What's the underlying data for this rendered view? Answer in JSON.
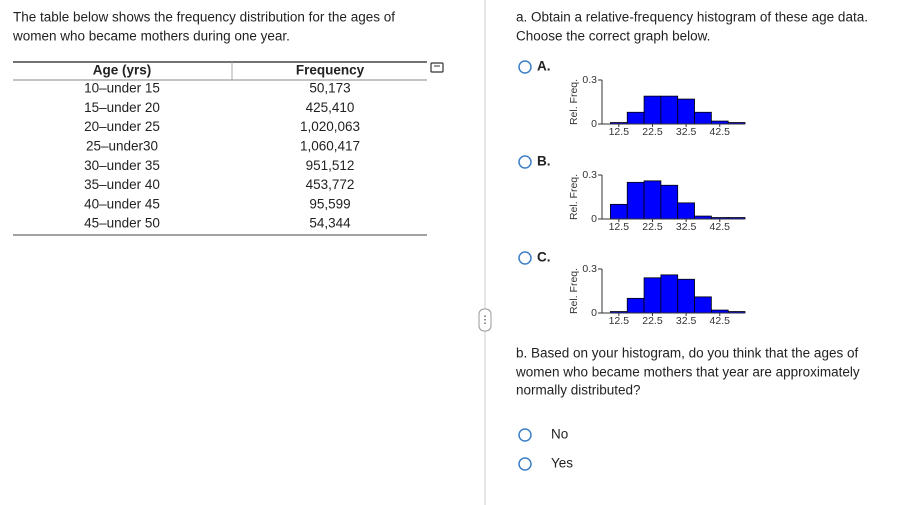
{
  "intro": [
    "The table below shows the frequency distribution for the ages of",
    "women who became mothers during one year."
  ],
  "table": {
    "headers": [
      "Age (yrs)",
      "Frequency"
    ],
    "rows": [
      [
        "10–under 15",
        "50,173"
      ],
      [
        "15–under 20",
        "425,410"
      ],
      [
        "20–under 25",
        "1,020,063"
      ],
      [
        "25–under30",
        "1,060,417"
      ],
      [
        "30–under 35",
        "951,512"
      ],
      [
        "35–under 40",
        "453,772"
      ],
      [
        "40–under 45",
        "95,599"
      ],
      [
        "45–under 50",
        "54,344"
      ]
    ]
  },
  "question_a": {
    "prompt": [
      "a. Obtain a relative-frequency histogram of these age data.",
      "Choose the correct graph below."
    ],
    "options": [
      {
        "label": "A.",
        "chart_data": {
          "type": "histogram",
          "y_label": "Rel. Freq.",
          "color": "#0000ff",
          "bins": [
            10,
            15,
            20,
            25,
            30,
            35,
            40,
            45,
            50
          ],
          "values": [
            0.01,
            0.08,
            0.19,
            0.19,
            0.17,
            0.08,
            0.02,
            0.01
          ],
          "xlim": [
            7.5,
            50
          ],
          "xticks": [
            12.5,
            22.5,
            32.5,
            42.5
          ],
          "ylim": [
            0,
            0.3
          ],
          "yticks": [
            0,
            0.3
          ]
        }
      },
      {
        "label": "B.",
        "chart_data": {
          "type": "histogram",
          "y_label": "Rel. Freq.",
          "color": "#0000ff",
          "bins": [
            10,
            15,
            20,
            25,
            30,
            35,
            40,
            45,
            50
          ],
          "values": [
            0.1,
            0.25,
            0.26,
            0.23,
            0.11,
            0.02,
            0.01,
            0.01
          ],
          "xlim": [
            7.5,
            50
          ],
          "xticks": [
            12.5,
            22.5,
            32.5,
            42.5
          ],
          "ylim": [
            0,
            0.3
          ],
          "yticks": [
            0,
            0.3
          ]
        }
      },
      {
        "label": "C.",
        "chart_data": {
          "type": "histogram",
          "y_label": "Rel. Freq.",
          "color": "#0000ff",
          "bins": [
            10,
            15,
            20,
            25,
            30,
            35,
            40,
            45,
            50
          ],
          "values": [
            0.01,
            0.1,
            0.24,
            0.26,
            0.23,
            0.11,
            0.02,
            0.01
          ],
          "xlim": [
            7.5,
            50
          ],
          "xticks": [
            12.5,
            22.5,
            32.5,
            42.5
          ],
          "ylim": [
            0,
            0.3
          ],
          "yticks": [
            0,
            0.3
          ]
        }
      }
    ]
  },
  "question_b": {
    "prompt": [
      "b. Based on your histogram, do you think that the ages of",
      "women who became mothers that year are approximately",
      "normally distributed?"
    ],
    "options": [
      "No",
      "Yes"
    ]
  }
}
